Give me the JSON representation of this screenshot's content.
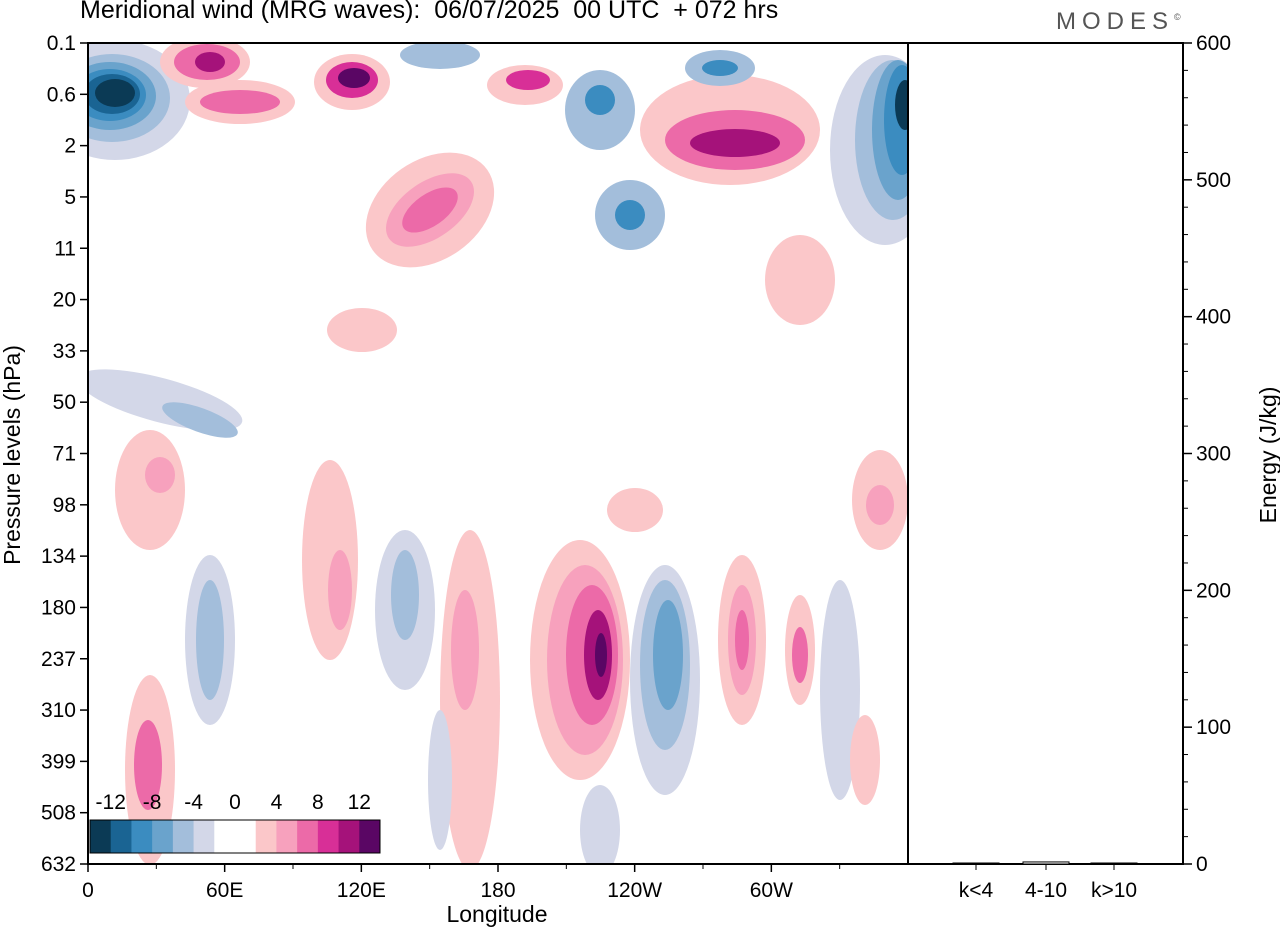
{
  "title": "Meridional wind (MRG waves):  06/07/2025  00 UTC  + 072 hrs",
  "logo": "MODES",
  "chart_data": [
    {
      "type": "heatmap",
      "variable": "Meridional wind (MRG waves)",
      "xlabel": "Longitude",
      "ylabel": "Pressure levels (hPa)",
      "x_ticks": [
        "0",
        "60E",
        "120E",
        "180",
        "120W",
        "60W"
      ],
      "y_ticks": [
        "0.1",
        "0.6",
        "2",
        "5",
        "11",
        "20",
        "33",
        "50",
        "71",
        "98",
        "134",
        "180",
        "237",
        "310",
        "399",
        "508",
        "632"
      ],
      "colorbar": {
        "labels": [
          "-12",
          "-8",
          "-4",
          "0",
          "4",
          "8",
          "12"
        ],
        "colors": [
          "#0b3a55",
          "#1a6493",
          "#3b8cc0",
          "#6aa3cc",
          "#a3bedb",
          "#d3d7e8",
          "#ffffff",
          "#ffffff",
          "#fbc7c9",
          "#f7a1bd",
          "#ec6aa8",
          "#d82f97",
          "#a5127a",
          "#5a0664"
        ]
      }
    },
    {
      "type": "bar",
      "ylabel": "Energy (J/kg)",
      "categories": [
        "k<4",
        "4-10",
        "k>10"
      ],
      "values": [
        0.5,
        1.5,
        0.3
      ],
      "ylim": [
        0,
        600
      ],
      "y_ticks": [
        "0",
        "100",
        "200",
        "300",
        "400",
        "500",
        "600"
      ]
    }
  ]
}
